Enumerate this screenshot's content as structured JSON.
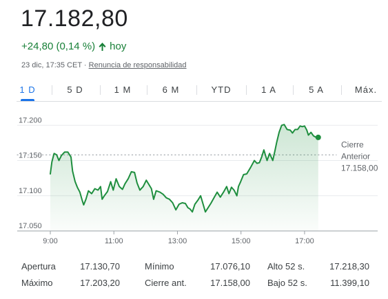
{
  "quote": {
    "price": "17.182,80",
    "change": "+24,80 (0,14 %)",
    "period": "hoy",
    "timestamp": "23 dic, 17:35 CET",
    "separator": "·",
    "disclaimer": "Renuncia de responsabilidad",
    "up_color": "#188038"
  },
  "tabs": [
    {
      "label": "1 D",
      "active": true
    },
    {
      "label": "5 D",
      "active": false
    },
    {
      "label": "1 M",
      "active": false
    },
    {
      "label": "6 M",
      "active": false
    },
    {
      "label": "YTD",
      "active": false
    },
    {
      "label": "1 A",
      "active": false
    },
    {
      "label": "5 A",
      "active": false
    },
    {
      "label": "Máx.",
      "active": false
    }
  ],
  "chart_data": {
    "type": "line",
    "x_ticks": [
      "9:00",
      "11:00",
      "13:00",
      "15:00",
      "17:00"
    ],
    "y_ticks": [
      "17.050",
      "17.100",
      "17.150",
      "17.200"
    ],
    "ylim": [
      17050,
      17210
    ],
    "x_range_hours": [
      9.0,
      19.3
    ],
    "grid": true,
    "line_color": "#1e8e3e",
    "previous_close": 17158,
    "previous_close_label_1": "Cierre",
    "previous_close_label_2": "Anterior",
    "previous_close_value": "17.158,00",
    "series": [
      {
        "points": [
          [
            9.0,
            17131
          ],
          [
            9.05,
            17148
          ],
          [
            9.12,
            17160
          ],
          [
            9.2,
            17158
          ],
          [
            9.27,
            17150
          ],
          [
            9.35,
            17157
          ],
          [
            9.45,
            17162
          ],
          [
            9.55,
            17162
          ],
          [
            9.65,
            17155
          ],
          [
            9.7,
            17135
          ],
          [
            9.78,
            17120
          ],
          [
            9.85,
            17112
          ],
          [
            9.93,
            17105
          ],
          [
            10.0,
            17094
          ],
          [
            10.05,
            17087
          ],
          [
            10.12,
            17095
          ],
          [
            10.2,
            17107
          ],
          [
            10.3,
            17103
          ],
          [
            10.4,
            17110
          ],
          [
            10.5,
            17108
          ],
          [
            10.58,
            17113
          ],
          [
            10.63,
            17095
          ],
          [
            10.7,
            17100
          ],
          [
            10.8,
            17106
          ],
          [
            10.9,
            17120
          ],
          [
            10.98,
            17108
          ],
          [
            11.07,
            17124
          ],
          [
            11.17,
            17113
          ],
          [
            11.27,
            17109
          ],
          [
            11.35,
            17117
          ],
          [
            11.45,
            17124
          ],
          [
            11.55,
            17134
          ],
          [
            11.65,
            17133
          ],
          [
            11.73,
            17118
          ],
          [
            11.82,
            17108
          ],
          [
            11.92,
            17113
          ],
          [
            12.02,
            17122
          ],
          [
            12.1,
            17116
          ],
          [
            12.18,
            17110
          ],
          [
            12.25,
            17095
          ],
          [
            12.33,
            17107
          ],
          [
            12.45,
            17105
          ],
          [
            12.55,
            17102
          ],
          [
            12.65,
            17097
          ],
          [
            12.75,
            17095
          ],
          [
            12.85,
            17090
          ],
          [
            12.95,
            17080
          ],
          [
            13.05,
            17088
          ],
          [
            13.15,
            17090
          ],
          [
            13.25,
            17089
          ],
          [
            13.33,
            17083
          ],
          [
            13.4,
            17081
          ],
          [
            13.47,
            17077
          ],
          [
            13.55,
            17088
          ],
          [
            13.65,
            17094
          ],
          [
            13.73,
            17100
          ],
          [
            13.8,
            17089
          ],
          [
            13.88,
            17077
          ],
          [
            13.95,
            17082
          ],
          [
            14.05,
            17089
          ],
          [
            14.15,
            17097
          ],
          [
            14.25,
            17105
          ],
          [
            14.35,
            17098
          ],
          [
            14.45,
            17105
          ],
          [
            14.55,
            17113
          ],
          [
            14.62,
            17103
          ],
          [
            14.7,
            17112
          ],
          [
            14.78,
            17108
          ],
          [
            14.87,
            17100
          ],
          [
            14.92,
            17113
          ],
          [
            14.99,
            17120
          ],
          [
            15.08,
            17130
          ],
          [
            15.18,
            17131
          ],
          [
            15.3,
            17140
          ],
          [
            15.42,
            17150
          ],
          [
            15.5,
            17146
          ],
          [
            15.58,
            17147
          ],
          [
            15.65,
            17155
          ],
          [
            15.72,
            17165
          ],
          [
            15.82,
            17150
          ],
          [
            15.9,
            17160
          ],
          [
            16.0,
            17150
          ],
          [
            16.07,
            17164
          ],
          [
            16.12,
            17175
          ],
          [
            16.2,
            17190
          ],
          [
            16.28,
            17200
          ],
          [
            16.36,
            17201
          ],
          [
            16.45,
            17194
          ],
          [
            16.55,
            17193
          ],
          [
            16.62,
            17189
          ],
          [
            16.7,
            17194
          ],
          [
            16.78,
            17194
          ],
          [
            16.86,
            17199
          ],
          [
            16.93,
            17198
          ],
          [
            17.0,
            17199
          ],
          [
            17.07,
            17193
          ],
          [
            17.12,
            17186
          ],
          [
            17.2,
            17190
          ],
          [
            17.28,
            17185
          ],
          [
            17.36,
            17183
          ],
          [
            17.43,
            17182.8
          ]
        ]
      }
    ]
  },
  "stats": [
    {
      "label": "Apertura",
      "value": "17.130,70"
    },
    {
      "label": "Máximo",
      "value": "17.203,20"
    },
    {
      "label": "Mínimo",
      "value": "17.076,10"
    },
    {
      "label": "Cierre ant.",
      "value": "17.158,00"
    },
    {
      "label": "Alto 52 s.",
      "value": "17.218,30"
    },
    {
      "label": "Bajo 52 s.",
      "value": "11.399,10"
    }
  ]
}
